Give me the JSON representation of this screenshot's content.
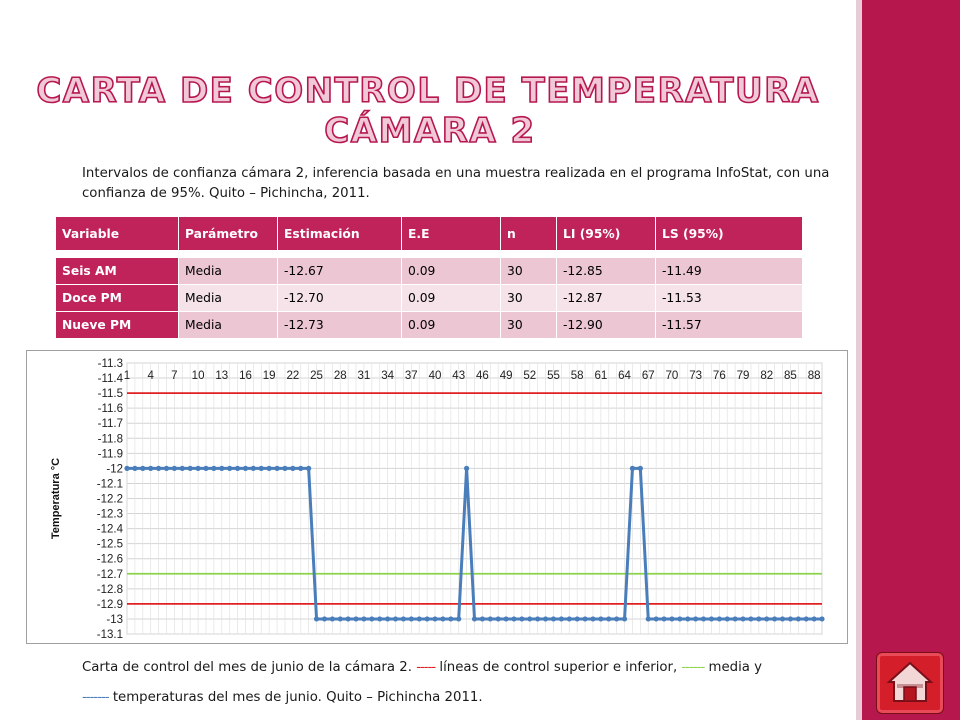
{
  "title": {
    "line1": "CARTA DE CONTROL DE TEMPERATURA",
    "line2": "CÁMARA 2",
    "color": "#f0c8d8",
    "stroke": "#b6184e"
  },
  "intro": "Intervalos de confianza cámara 2, inferencia basada en una muestra realizada en el programa InfoStat, con una confianza de 95%. Quito – Pichincha, 2011.",
  "table": {
    "headers": [
      "Variable",
      "Parámetro",
      "Estimación",
      "E.E",
      "n",
      "LI (95%)",
      "LS (95%)"
    ],
    "rows": [
      [
        "Seis AM",
        "Media",
        "-12.67",
        "0.09",
        "30",
        "-12.85",
        "-11.49"
      ],
      [
        "Doce PM",
        "Media",
        "-12.70",
        "0.09",
        "30",
        "-12.87",
        "-11.53"
      ],
      [
        "Nueve PM",
        "Media",
        "-12.73",
        "0.09",
        "30",
        "-12.90",
        "-11.57"
      ]
    ]
  },
  "chart_data": {
    "type": "line",
    "ylabel": "Temperatura °C",
    "ylim": [
      -13.1,
      -11.3
    ],
    "yticks": [
      "-11.3",
      "-11.4",
      "-11.5",
      "-11.6",
      "-11.7",
      "-11.8",
      "-11.9",
      "-12",
      "-12.1",
      "-12.2",
      "-12.3",
      "-12.4",
      "-12.5",
      "-12.6",
      "-12.7",
      "-12.8",
      "-12.9",
      "-13",
      "-13.1"
    ],
    "xticks": [
      "1",
      "4",
      "7",
      "10",
      "13",
      "16",
      "19",
      "22",
      "25",
      "28",
      "31",
      "34",
      "37",
      "40",
      "43",
      "46",
      "49",
      "52",
      "55",
      "58",
      "61",
      "64",
      "67",
      "70",
      "73",
      "76",
      "79",
      "82",
      "85",
      "88"
    ],
    "grid": true,
    "control_limits": [
      {
        "name": "LS",
        "value": -11.5,
        "color": "#e02020"
      },
      {
        "name": "media",
        "value": -12.7,
        "color": "#8cd24a"
      },
      {
        "name": "LI",
        "value": -12.9,
        "color": "#e02020"
      }
    ],
    "series": [
      {
        "color": "#4a7ebb",
        "x": [
          1,
          2,
          3,
          4,
          5,
          6,
          7,
          8,
          9,
          10,
          11,
          12,
          13,
          14,
          15,
          16,
          17,
          18,
          19,
          20,
          21,
          22,
          23,
          24,
          25,
          26,
          27,
          28,
          29,
          30,
          31,
          32,
          33,
          34,
          35,
          36,
          37,
          38,
          39,
          40,
          41,
          42,
          43,
          44,
          45,
          46,
          47,
          48,
          49,
          50,
          51,
          52,
          53,
          54,
          55,
          56,
          57,
          58,
          59,
          60,
          61,
          62,
          63,
          64,
          65,
          66,
          67,
          68,
          69,
          70,
          71,
          72,
          73,
          74,
          75,
          76,
          77,
          78,
          79,
          80,
          81,
          82,
          83,
          84,
          85,
          86,
          87,
          88,
          89
        ],
        "y": [
          -12,
          -12,
          -12,
          -12,
          -12,
          -12,
          -12,
          -12,
          -12,
          -12,
          -12,
          -12,
          -12,
          -12,
          -12,
          -12,
          -12,
          -12,
          -12,
          -12,
          -12,
          -12,
          -12,
          -12,
          -13,
          -13,
          -13,
          -13,
          -13,
          -13,
          -13,
          -13,
          -13,
          -13,
          -13,
          -13,
          -13,
          -13,
          -13,
          -13,
          -13,
          -13,
          -13,
          -12,
          -13,
          -13,
          -13,
          -13,
          -13,
          -13,
          -13,
          -13,
          -13,
          -13,
          -13,
          -13,
          -13,
          -13,
          -13,
          -13,
          -13,
          -13,
          -13,
          -13,
          -12,
          -12,
          -13,
          -13,
          -13,
          -13,
          -13,
          -13,
          -13,
          -13,
          -13,
          -13,
          -13,
          -13,
          -13,
          -13,
          -13,
          -13,
          -13,
          -13,
          -13,
          -13,
          -13,
          -13,
          -13
        ]
      }
    ]
  },
  "caption": {
    "line1_a": "Carta de control del mes de junio de la cámara 2.",
    "line1_dash_red": "-----",
    "line1_b": "líneas de control superior e inferior,",
    "line1_dash_green": "------",
    "line1_c": "media y",
    "line2_dash_blue": "-------",
    "line2_a": "temperaturas del mes de junio. Quito – Pichincha 2011."
  },
  "home_button_icon": "home-icon"
}
